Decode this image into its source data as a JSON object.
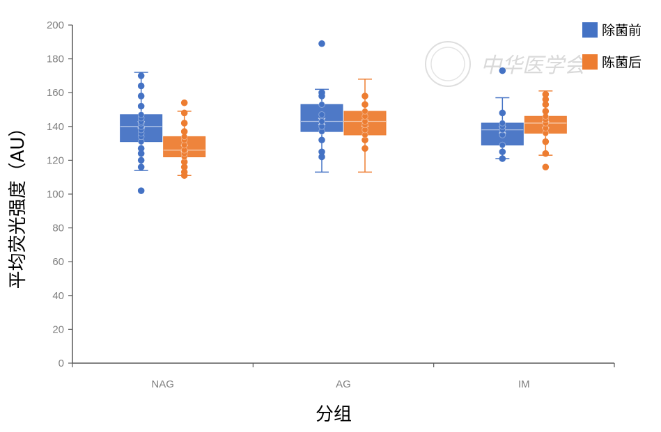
{
  "chart_data": {
    "type": "box",
    "title": "",
    "xlabel": "分组",
    "ylabel": "平均荧光强度（AU）",
    "ylim": [
      0,
      200
    ],
    "yticks": [
      0,
      20,
      40,
      60,
      80,
      100,
      120,
      140,
      160,
      180,
      200
    ],
    "categories": [
      "NAG",
      "AG",
      "IM"
    ],
    "legend_position": "top-right",
    "grid": false,
    "series": [
      {
        "name": "除菌前",
        "color": "#4472c4",
        "boxes": [
          {
            "category": "NAG",
            "min": 114,
            "q1": 131,
            "median": 140,
            "q3": 147,
            "max": 172,
            "mean": 141,
            "points": [
              102,
              116,
              120,
              124,
              127,
              131,
              134,
              136,
              138,
              140,
              142,
              143,
              145,
              147,
              152,
              158,
              164,
              170
            ]
          },
          {
            "category": "AG",
            "min": 113,
            "q1": 137,
            "median": 143,
            "q3": 153,
            "max": 162,
            "mean": 143,
            "points": [
              189,
              122,
              125,
              132,
              137,
              140,
              143,
              147,
              153,
              158,
              160
            ]
          },
          {
            "category": "IM",
            "min": 121,
            "q1": 129,
            "median": 138,
            "q3": 142,
            "max": 157,
            "mean": 138,
            "points": [
              121,
              125,
              129,
              135,
              138,
              140,
              142,
              148,
              173
            ]
          }
        ]
      },
      {
        "name": "陈菌后",
        "color": "#ed7d31",
        "boxes": [
          {
            "category": "NAG",
            "min": 111,
            "q1": 122,
            "median": 126,
            "q3": 134,
            "max": 149,
            "mean": 127,
            "points": [
              111,
              113,
              116,
              119,
              122,
              124,
              126,
              129,
              132,
              134,
              137,
              142,
              148,
              154
            ]
          },
          {
            "category": "AG",
            "min": 113,
            "q1": 135,
            "median": 143,
            "q3": 149,
            "max": 168,
            "mean": 142,
            "points": [
              127,
              132,
              135,
              138,
              141,
              143,
              146,
              149,
              153,
              158
            ]
          },
          {
            "category": "IM",
            "min": 123,
            "q1": 136,
            "median": 142,
            "q3": 146,
            "max": 161,
            "mean": 141,
            "points": [
              116,
              124,
              131,
              136,
              139,
              142,
              144,
              146,
              149,
              153,
              156,
              159
            ]
          }
        ]
      }
    ]
  },
  "watermark_text": "中华医学会"
}
